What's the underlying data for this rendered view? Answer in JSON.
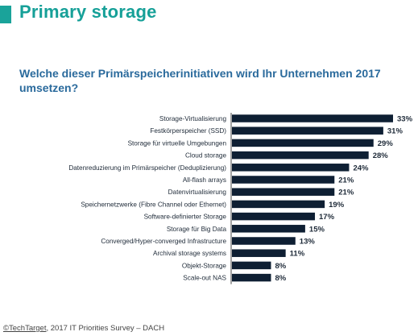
{
  "header": {
    "title": "Primary storage"
  },
  "question": "Welche dieser Primärspeicherinitiativen wird Ihr Unternehmen 2017 umsetzen?",
  "chart_data": {
    "type": "bar",
    "orientation": "horizontal",
    "title": "Welche dieser Primärspeicherinitiativen wird Ihr Unternehmen 2017 umsetzen?",
    "xlabel": "",
    "ylabel": "",
    "xlim": [
      0,
      33
    ],
    "grid": false,
    "categories": [
      "Storage-Virtualisierung",
      "Festkörperspeicher (SSD)",
      "Storage für virtuelle Umgebungen",
      "Cloud storage",
      "Datenreduzierung im Primärspeicher (Deduplizierung)",
      "All-flash arrays",
      "Datenvirtualisierung",
      "Speichernetzwerke (Fibre Channel oder Ethernet)",
      "Software-definierter Storage",
      "Storage für Big Data",
      "Converged/Hyper-converged Infrastructure",
      "Archival storage systems",
      "Objekt-Storage",
      "Scale-out NAS"
    ],
    "values": [
      33,
      31,
      29,
      28,
      24,
      21,
      21,
      19,
      17,
      15,
      13,
      11,
      8,
      8
    ],
    "value_labels": [
      "33%",
      "31%",
      "29%",
      "28%",
      "24%",
      "21%",
      "21%",
      "19%",
      "17%",
      "15%",
      "13%",
      "11%",
      "8%",
      "8%"
    ],
    "bar_color": "#0e1f33",
    "axis_color": "#666666"
  },
  "footer": {
    "brand": "©TechTarget",
    "rest": ", 2017 IT Priorities Survey – DACH"
  }
}
